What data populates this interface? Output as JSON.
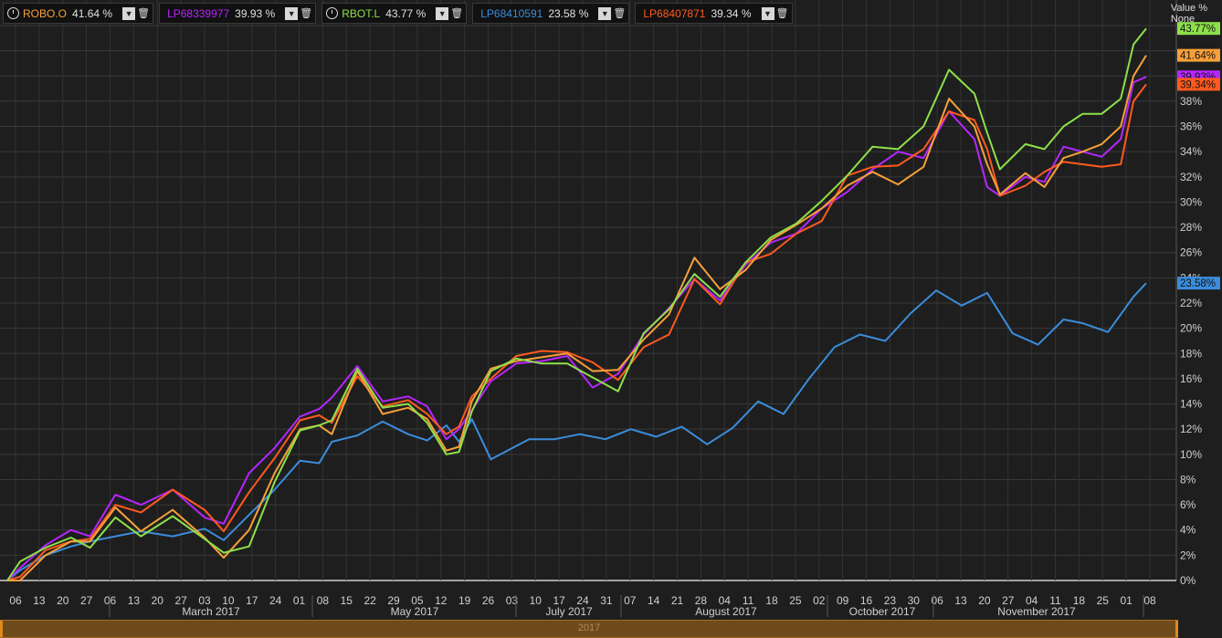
{
  "legend": [
    {
      "name": "ROBO.O",
      "value": "41.64 %",
      "color": "#f7a03a",
      "clock": true
    },
    {
      "name": "LP68339977",
      "value": "39.93 %",
      "color": "#b526ff",
      "clock": false
    },
    {
      "name": "RBOT.L",
      "value": "43.77 %",
      "color": "#8ee04a",
      "clock": true
    },
    {
      "name": "LP68410591",
      "value": "23.58 %",
      "color": "#3b8ddc",
      "clock": false
    },
    {
      "name": "LP68407871",
      "value": "39.34 %",
      "color": "#ff5a1f",
      "clock": false
    }
  ],
  "value_header": {
    "line1": "Value %",
    "line2": "None"
  },
  "scrollbar_label": "2017",
  "chart_data": {
    "type": "line",
    "ylim": [
      0,
      44
    ],
    "y_ticks": [
      "0%",
      "2%",
      "4%",
      "6%",
      "8%",
      "10%",
      "12%",
      "14%",
      "16%",
      "18%",
      "20%",
      "22%",
      "24%",
      "26%",
      "28%",
      "30%",
      "32%",
      "34%",
      "36%",
      "38%"
    ],
    "x_ticks": [
      "06",
      "13",
      "20",
      "27",
      "06",
      "13",
      "20",
      "27",
      "03",
      "10",
      "17",
      "24",
      "01",
      "08",
      "15",
      "22",
      "29",
      "05",
      "12",
      "19",
      "26",
      "03",
      "10",
      "17",
      "24",
      "31",
      "07",
      "14",
      "21",
      "28",
      "04",
      "11",
      "18",
      "25",
      "02",
      "09",
      "16",
      "23",
      "30",
      "06",
      "13",
      "20",
      "27",
      "04",
      "11",
      "18",
      "25",
      "01",
      "08"
    ],
    "month_labels": [
      "March 2017",
      "May 2017",
      "July 2017",
      "August 2017",
      "October 2017",
      "November 2017"
    ],
    "end_labels": [
      {
        "text": "43.77%",
        "value": 43.77,
        "color": "#8ee04a"
      },
      {
        "text": "41.64%",
        "value": 41.64,
        "color": "#f7a03a"
      },
      {
        "text": "39.93%",
        "value": 39.93,
        "color": "#b526ff"
      },
      {
        "text": "39.34%",
        "value": 39.34,
        "color": "#ff5a1f"
      },
      {
        "text": "23.58%",
        "value": 23.58,
        "color": "#3b8ddc"
      }
    ],
    "series": [
      {
        "name": "LP68410591",
        "color": "#3b8ddc",
        "x": [
          0,
          2,
          6,
          10,
          13,
          17,
          21,
          26,
          31,
          34,
          38,
          42,
          46,
          49,
          51,
          55,
          59,
          63,
          66,
          69,
          71,
          73,
          76,
          82,
          86,
          90,
          94,
          98,
          102,
          106,
          110,
          114,
          118,
          122,
          126,
          130,
          134,
          138,
          142,
          146,
          150,
          154,
          158,
          162,
          166,
          169,
          173,
          177,
          179
        ],
        "y": [
          0,
          0.8,
          2.0,
          2.7,
          3.1,
          3.5,
          3.9,
          3.5,
          4.1,
          3.2,
          5.2,
          7.2,
          9.5,
          9.3,
          11,
          11.5,
          12.6,
          11.6,
          11.1,
          12.3,
          11.0,
          12.8,
          9.6,
          11.2,
          11.2,
          11.6,
          11.2,
          12.0,
          11.4,
          12.2,
          10.8,
          12.1,
          14.2,
          13.2,
          16.0,
          18.5,
          19.5,
          19.0,
          21.2,
          23.0,
          21.8,
          22.8,
          19.6,
          18.7,
          20.7,
          20.4,
          19.7,
          22.5,
          23.58
        ]
      },
      {
        "name": "LP68339977",
        "color": "#b526ff",
        "x": [
          0,
          2,
          6,
          10,
          13,
          17,
          21,
          26,
          31,
          34,
          38,
          42,
          46,
          49,
          51,
          55,
          59,
          63,
          66,
          69,
          71,
          73,
          76,
          80,
          84,
          88,
          92,
          96,
          100,
          104,
          108,
          112,
          116,
          120,
          124,
          128,
          132,
          136,
          140,
          144,
          148,
          152,
          154,
          156,
          160,
          163,
          166,
          169,
          172,
          175,
          177,
          179
        ],
        "y": [
          0,
          1.0,
          2.8,
          4.0,
          3.5,
          6.8,
          6.0,
          7.2,
          5.0,
          4.5,
          8.5,
          10.5,
          13.0,
          13.6,
          14.5,
          17.0,
          14.2,
          14.6,
          13.8,
          11.2,
          12.0,
          13.5,
          15.8,
          17.2,
          17.4,
          17.8,
          15.3,
          16.4,
          19.5,
          21.6,
          23.9,
          22.2,
          25.0,
          26.8,
          27.5,
          29.5,
          30.8,
          32.6,
          34.0,
          33.5,
          37.2,
          35.0,
          31.2,
          30.5,
          32.0,
          31.6,
          34.4,
          34.0,
          33.6,
          35.0,
          39.5,
          39.93
        ]
      },
      {
        "name": "LP68407871",
        "color": "#ff5a1f",
        "x": [
          0,
          2,
          6,
          10,
          13,
          17,
          21,
          26,
          31,
          34,
          38,
          42,
          46,
          49,
          51,
          55,
          59,
          63,
          66,
          69,
          71,
          73,
          76,
          80,
          84,
          88,
          92,
          96,
          100,
          104,
          108,
          112,
          116,
          120,
          124,
          128,
          132,
          136,
          140,
          144,
          148,
          152,
          154,
          156,
          160,
          163,
          166,
          169,
          172,
          175,
          177,
          179
        ],
        "y": [
          0,
          0.3,
          2.4,
          3.1,
          3.3,
          6.0,
          5.4,
          7.2,
          5.6,
          3.9,
          7.0,
          9.7,
          12.7,
          13.1,
          12.5,
          16.2,
          13.8,
          14.3,
          13.2,
          11.6,
          12.2,
          14.6,
          16.0,
          17.8,
          18.2,
          18.1,
          17.3,
          15.9,
          18.5,
          19.5,
          23.9,
          21.9,
          25.2,
          25.9,
          27.5,
          28.5,
          32.1,
          32.8,
          32.9,
          34.2,
          37.2,
          36.5,
          34.2,
          30.5,
          31.3,
          32.4,
          33.2,
          33.0,
          32.8,
          33.0,
          38.0,
          39.34
        ]
      },
      {
        "name": "ROBO.O",
        "color": "#f7a03a",
        "x": [
          0,
          2,
          6,
          10,
          13,
          17,
          21,
          26,
          31,
          34,
          38,
          42,
          46,
          49,
          51,
          55,
          59,
          63,
          66,
          69,
          71,
          73,
          76,
          80,
          84,
          88,
          92,
          96,
          100,
          104,
          108,
          112,
          116,
          120,
          124,
          128,
          132,
          136,
          140,
          144,
          148,
          152,
          154,
          156,
          160,
          163,
          166,
          169,
          172,
          175,
          177,
          179
        ],
        "y": [
          0,
          0.0,
          2.0,
          3.1,
          3.1,
          5.8,
          3.9,
          5.6,
          3.4,
          1.8,
          4.0,
          8.5,
          12.0,
          12.3,
          11.6,
          16.6,
          13.2,
          13.7,
          12.8,
          10.3,
          10.6,
          14.2,
          16.8,
          17.4,
          17.7,
          18.0,
          16.6,
          16.7,
          19.1,
          21.1,
          25.6,
          23.1,
          24.6,
          27.0,
          28.2,
          29.5,
          31.3,
          32.4,
          31.4,
          32.8,
          38.2,
          36.0,
          33.0,
          30.6,
          32.3,
          31.2,
          33.5,
          34.0,
          34.6,
          36.0,
          40.0,
          41.64
        ]
      },
      {
        "name": "RBOT.L",
        "color": "#8ee04a",
        "x": [
          0,
          2,
          6,
          10,
          13,
          17,
          21,
          26,
          31,
          34,
          38,
          42,
          46,
          49,
          51,
          55,
          59,
          63,
          66,
          69,
          71,
          73,
          76,
          80,
          84,
          88,
          92,
          96,
          100,
          104,
          108,
          112,
          116,
          120,
          124,
          128,
          132,
          136,
          140,
          144,
          148,
          152,
          154,
          156,
          160,
          163,
          166,
          169,
          172,
          175,
          177,
          179
        ],
        "y": [
          0,
          1.5,
          2.6,
          3.4,
          2.6,
          5.0,
          3.5,
          5.1,
          3.3,
          2.2,
          2.7,
          7.8,
          11.9,
          12.3,
          12.7,
          16.8,
          13.7,
          14.0,
          12.5,
          10.0,
          10.2,
          13.4,
          16.6,
          17.6,
          17.2,
          17.2,
          16.1,
          15.0,
          19.6,
          21.5,
          24.3,
          22.5,
          25.2,
          27.2,
          28.3,
          30.1,
          32.1,
          34.4,
          34.2,
          36.0,
          40.5,
          38.6,
          35.5,
          32.6,
          34.6,
          34.2,
          36.0,
          37.0,
          37.0,
          38.2,
          42.5,
          43.77
        ]
      }
    ]
  }
}
